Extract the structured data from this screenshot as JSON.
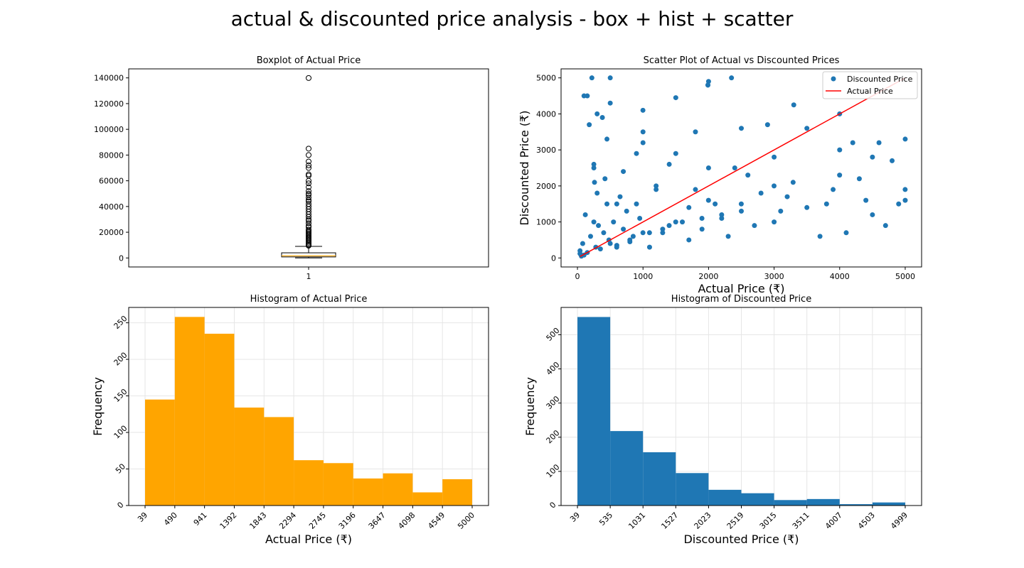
{
  "figure": {
    "title": "actual & discounted price analysis - box + hist + scatter"
  },
  "colors": {
    "orange": "#ffa500",
    "blue": "#1f77b4",
    "red": "#ff0000",
    "grid": "#e6e6e6"
  },
  "chart_data": [
    {
      "id": "box",
      "type": "box",
      "title": "Boxplot of Actual Price",
      "xlabel": "",
      "ylabel": "",
      "xticks": [
        "1"
      ],
      "ylim": [
        -7000,
        147000
      ],
      "yticks": [
        0,
        20000,
        40000,
        60000,
        80000,
        100000,
        120000,
        140000
      ],
      "grid": false,
      "stats": {
        "min": 39,
        "q1": 800,
        "median": 1650,
        "q3": 4000,
        "whisker_high": 9000
      },
      "outliers": [
        9500,
        10000,
        11000,
        12000,
        13000,
        14000,
        15000,
        16000,
        17000,
        18000,
        19000,
        20000,
        21000,
        22000,
        24000,
        25000,
        27000,
        29000,
        30000,
        32000,
        34000,
        36000,
        38000,
        40000,
        42000,
        44000,
        45000,
        47000,
        49000,
        50000,
        52000,
        55000,
        58000,
        60000,
        64000,
        65000,
        70000,
        72000,
        75000,
        80000,
        85000,
        139900
      ]
    },
    {
      "id": "scatter",
      "type": "scatter",
      "title": "Scatter Plot of Actual vs Discounted Prices",
      "xlabel": "Actual Price (₹)",
      "ylabel": "Discounted Price (₹)",
      "xlim": [
        -250,
        5250
      ],
      "ylim": [
        -250,
        5250
      ],
      "xticks": [
        0,
        1000,
        2000,
        3000,
        4000,
        5000
      ],
      "yticks": [
        0,
        1000,
        2000,
        3000,
        4000,
        5000
      ],
      "grid": false,
      "legend": {
        "placement": "top-right",
        "entries": [
          "Discounted Price",
          "Actual Price"
        ]
      },
      "series": [
        {
          "name": "Discounted Price",
          "kind": "scatter",
          "x": [
            39,
            60,
            80,
            100,
            120,
            150,
            180,
            200,
            220,
            250,
            280,
            300,
            320,
            350,
            380,
            400,
            420,
            450,
            480,
            500,
            550,
            600,
            650,
            700,
            750,
            800,
            850,
            900,
            950,
            999,
            1000,
            1100,
            1200,
            1300,
            1400,
            1500,
            1600,
            1700,
            1800,
            1900,
            1990,
            2000,
            2100,
            2200,
            2300,
            2400,
            2500,
            2600,
            2700,
            2800,
            2900,
            3000,
            3100,
            3200,
            3300,
            3500,
            3700,
            3800,
            3900,
            4000,
            4100,
            4200,
            4300,
            4400,
            4500,
            4600,
            4700,
            4800,
            4900,
            5000,
            39,
            150,
            250,
            260,
            500,
            1000,
            1500,
            1990,
            2000,
            2350,
            3290,
            5000,
            4000,
            300,
            450,
            700,
            900,
            1200,
            1800,
            2500,
            3000,
            4500,
            100,
            250,
            600,
            1300,
            1700,
            2200,
            3500,
            4999,
            500,
            999,
            1499,
            1999,
            2999,
            3999,
            599,
            799,
            1099,
            1399,
            1899,
            2499
          ],
          "y": [
            200,
            50,
            400,
            4500,
            1200,
            150,
            3700,
            600,
            5000,
            2500,
            300,
            1800,
            900,
            250,
            3900,
            700,
            2200,
            1500,
            500,
            4300,
            1000,
            350,
            1700,
            800,
            1300,
            450,
            600,
            2900,
            1100,
            4100,
            3500,
            300,
            1900,
            700,
            2600,
            4450,
            1000,
            500,
            3500,
            800,
            4800,
            4900,
            1500,
            1200,
            600,
            2500,
            3600,
            2300,
            900,
            1800,
            3700,
            2800,
            1300,
            1700,
            4250,
            3600,
            600,
            1500,
            1900,
            4000,
            700,
            3200,
            2200,
            1600,
            1200,
            3200,
            900,
            2700,
            1500,
            3300,
            120,
            4500,
            2600,
            2100,
            5000,
            3200,
            2900,
            4800,
            2500,
            5000,
            2100,
            1600,
            3000,
            4000,
            3300,
            2400,
            1500,
            2000,
            1900,
            1300,
            1000,
            2800,
            80,
            1000,
            1500,
            800,
            1400,
            1100,
            1400,
            1900,
            400,
            700,
            1000,
            1600,
            2000,
            2300,
            300,
            500,
            700,
            900,
            1100,
            1500
          ]
        },
        {
          "name": "Actual Price",
          "kind": "line",
          "x": [
            39,
            5000
          ],
          "y": [
            39,
            5000
          ]
        }
      ]
    },
    {
      "id": "hist-actual",
      "type": "bar",
      "title": "Histogram of Actual Price",
      "xlabel": "Actual Price (₹)",
      "ylabel": "Frequency",
      "bin_edges": [
        39,
        490,
        941,
        1392,
        1843,
        2294,
        2745,
        3196,
        3647,
        4098,
        4549,
        5000
      ],
      "values": [
        145,
        258,
        235,
        134,
        121,
        62,
        58,
        37,
        44,
        18,
        36
      ],
      "xticks": [
        "39",
        "490",
        "941",
        "1392",
        "1843",
        "2294",
        "2745",
        "3196",
        "3647",
        "4098",
        "4549",
        "5000"
      ],
      "yticks": [
        0,
        50,
        100,
        150,
        200,
        250
      ],
      "xlim": [
        -209,
        5248
      ],
      "ylim": [
        0,
        271
      ],
      "grid": true,
      "color": "#ffa500"
    },
    {
      "id": "hist-discounted",
      "type": "bar",
      "title": "Histogram of Discounted Price",
      "xlabel": "Discounted Price (₹)",
      "ylabel": "Frequency",
      "bin_edges": [
        39,
        535,
        1031,
        1527,
        2023,
        2519,
        3015,
        3511,
        4007,
        4503,
        4999
      ],
      "values": [
        552,
        218,
        156,
        95,
        46,
        36,
        16,
        19,
        4,
        9
      ],
      "xticks": [
        "39",
        "535",
        "1031",
        "1527",
        "2023",
        "2519",
        "3015",
        "3511",
        "4007",
        "4503",
        "4999"
      ],
      "yticks": [
        0,
        100,
        200,
        300,
        400,
        500
      ],
      "xlim": [
        -209,
        5247
      ],
      "ylim": [
        0,
        580
      ],
      "grid": true,
      "color": "#1f77b4"
    }
  ]
}
